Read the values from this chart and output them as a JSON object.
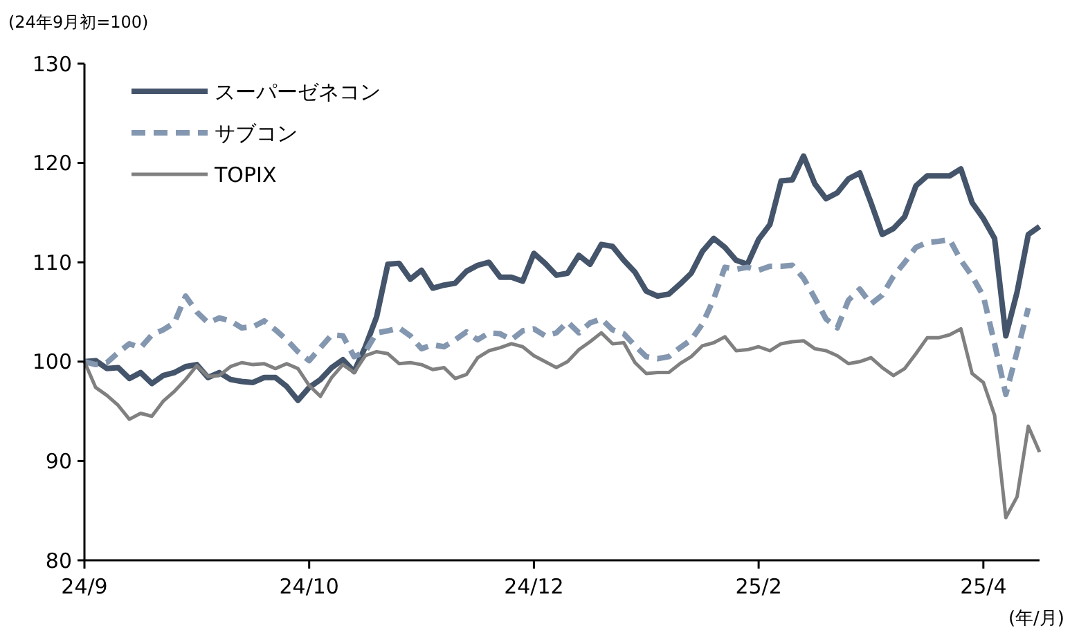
{
  "chart_data": {
    "type": "line",
    "ylabel": "(24年9月初=100)",
    "xlabel": "(年/月)",
    "categories": [
      "24/9",
      null,
      null,
      null,
      null,
      null,
      null,
      null,
      null,
      null,
      null,
      null,
      null,
      null,
      null,
      null,
      null,
      null,
      null,
      null,
      "24/10",
      null,
      null,
      null,
      null,
      null,
      null,
      null,
      null,
      null,
      null,
      null,
      null,
      null,
      null,
      null,
      null,
      null,
      null,
      null,
      "24/12",
      null,
      null,
      null,
      null,
      null,
      null,
      null,
      null,
      null,
      null,
      null,
      null,
      null,
      null,
      null,
      null,
      null,
      null,
      null,
      "25/2",
      null,
      null,
      null,
      null,
      null,
      null,
      null,
      null,
      null,
      null,
      null,
      null,
      null,
      null,
      null,
      null,
      null,
      null,
      null,
      "25/4",
      null,
      null,
      null,
      null,
      null
    ],
    "ylim": [
      80,
      130
    ],
    "yticks": [
      80,
      90,
      100,
      110,
      120,
      130
    ],
    "grid": false,
    "legend": "top left",
    "marker": "none",
    "series": [
      {
        "name": "スーパーゼネコン",
        "color": "#44546a",
        "line_style": "solid",
        "values": [
          100,
          100.1,
          99.3,
          99.4,
          98.3,
          98.9,
          97.8,
          98.6,
          98.9,
          99.5,
          99.7,
          98.4,
          98.9,
          98.2,
          98,
          97.9,
          98.4,
          98.4,
          97.5,
          96.1,
          97.4,
          98.2,
          99.4,
          100.2,
          99,
          101.5,
          104.5,
          109.8,
          109.9,
          108.3,
          109.2,
          107.4,
          107.7,
          107.9,
          109.1,
          109.7,
          110,
          108.5,
          108.5,
          108.1,
          110.9,
          109.9,
          108.7,
          108.9,
          110.7,
          109.8,
          111.8,
          111.6,
          110.2,
          109,
          107.1,
          106.6,
          106.8,
          107.8,
          108.9,
          111.1,
          112.4,
          111.5,
          110.2,
          109.8,
          112.3,
          113.8,
          118.2,
          118.3,
          120.7,
          117.9,
          116.4,
          117,
          118.4,
          119,
          116,
          112.8,
          113.4,
          114.6,
          117.7,
          118.7,
          118.7,
          118.7,
          119.4,
          116,
          114.4,
          112.4,
          102.6,
          107,
          112.8,
          113.6
        ]
      },
      {
        "name": "サブコン",
        "color": "#8497b0",
        "line_style": "dashed",
        "values": [
          100,
          99.7,
          99.9,
          100.9,
          101.8,
          101.4,
          102.7,
          103.2,
          103.9,
          106.6,
          105,
          103.9,
          104.4,
          104.1,
          103.4,
          103.5,
          104.1,
          103.2,
          102.2,
          101,
          100.1,
          101.4,
          102.7,
          102.6,
          100.5,
          101,
          102.9,
          103.1,
          103.4,
          102.6,
          101.3,
          101.7,
          101.5,
          102.2,
          103,
          102.2,
          102.9,
          102.8,
          102.2,
          103.1,
          103.3,
          102.6,
          102.9,
          104,
          102.9,
          103.9,
          104.3,
          103.2,
          102.8,
          101.6,
          100.5,
          100.3,
          100.5,
          101.4,
          102.2,
          103.8,
          106.3,
          109.5,
          109.3,
          109.5,
          109.2,
          109.6,
          109.6,
          109.7,
          108.4,
          106.4,
          104.3,
          103.4,
          106.2,
          107.3,
          105.8,
          106.7,
          108.6,
          110,
          111.5,
          112,
          112.1,
          112.3,
          110.2,
          108.6,
          106.6,
          101.8,
          96.7,
          101,
          105.4,
          null
        ]
      },
      {
        "name": "TOPIX",
        "color": "#808080",
        "line_style": "solid",
        "values": [
          100,
          97.4,
          96.6,
          95.6,
          94.2,
          94.8,
          94.5,
          96,
          97,
          98.2,
          99.6,
          98.5,
          98.6,
          99.5,
          99.9,
          99.7,
          99.8,
          99.3,
          99.8,
          99.3,
          97.6,
          96.5,
          98.4,
          99.7,
          98.9,
          100.6,
          101,
          100.8,
          99.8,
          99.9,
          99.7,
          99.2,
          99.4,
          98.3,
          98.7,
          100.4,
          101.1,
          101.4,
          101.8,
          101.5,
          100.6,
          100,
          99.4,
          100,
          101.2,
          102,
          102.9,
          101.8,
          101.9,
          99.9,
          98.8,
          98.9,
          98.9,
          99.8,
          100.5,
          101.6,
          101.9,
          102.5,
          101.1,
          101.2,
          101.5,
          101.1,
          101.8,
          102,
          102.1,
          101.3,
          101.1,
          100.6,
          99.8,
          100,
          100.4,
          99.4,
          98.6,
          99.3,
          100.8,
          102.4,
          102.4,
          102.7,
          103.3,
          98.8,
          97.9,
          94.6,
          84.3,
          86.4,
          93.5,
          90.9
        ]
      }
    ]
  }
}
